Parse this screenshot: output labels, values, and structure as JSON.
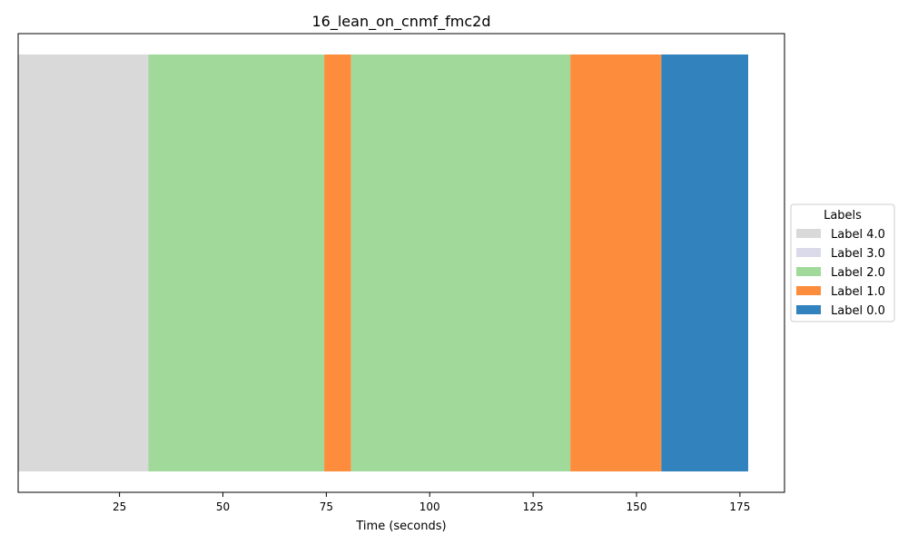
{
  "chart_data": {
    "type": "bar",
    "orientation": "horizontal-segments",
    "title": "16_lean_on_cnmf_fmc2d",
    "xlabel": "Time (seconds)",
    "ylabel": "",
    "xlim": [
      0.5,
      185.5
    ],
    "xticks": [
      25,
      50,
      75,
      100,
      125,
      150,
      175
    ],
    "xtick_labels": [
      "25",
      "50",
      "75",
      "100",
      "125",
      "150",
      "175"
    ],
    "grid": false,
    "legend": {
      "title": "Labels",
      "placement": "center-right outside",
      "entries": [
        {
          "label": "Label 4.0",
          "color": "#d9d9d9"
        },
        {
          "label": "Label 3.0",
          "color": "#dadaeb"
        },
        {
          "label": "Label 2.0",
          "color": "#a1d99b"
        },
        {
          "label": "Label 1.0",
          "color": "#fd8d3c"
        },
        {
          "label": "Label 0.0",
          "color": "#3182bd"
        }
      ]
    },
    "segments": [
      {
        "start": 0.5,
        "end": 32.0,
        "label": "Label 4.0"
      },
      {
        "start": 32.0,
        "end": 74.5,
        "label": "Label 2.0"
      },
      {
        "start": 74.5,
        "end": 81.0,
        "label": "Label 1.0"
      },
      {
        "start": 81.0,
        "end": 134.0,
        "label": "Label 2.0"
      },
      {
        "start": 134.0,
        "end": 156.0,
        "label": "Label 1.0"
      },
      {
        "start": 156.0,
        "end": 177.0,
        "label": "Label 0.0"
      }
    ]
  }
}
